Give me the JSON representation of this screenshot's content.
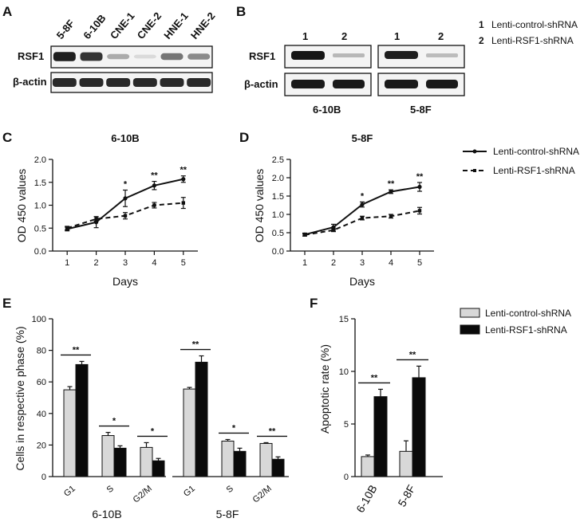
{
  "panels": {
    "A": {
      "label": "A",
      "lanes": [
        "5-8F",
        "6-10B",
        "CNE-1",
        "CNE-2",
        "HNE-1",
        "HNE-2"
      ],
      "rows": [
        "RSF1",
        "β-actin"
      ],
      "rsf1_intensity": [
        0.95,
        0.85,
        0.3,
        0.08,
        0.55,
        0.45
      ],
      "actin_intensity": [
        0.9,
        0.9,
        0.9,
        0.9,
        0.9,
        0.9
      ]
    },
    "B": {
      "label": "B",
      "lanes": [
        "1",
        "2"
      ],
      "rows": [
        "RSF1",
        "β-actin"
      ],
      "groups": [
        "6-10B",
        "5-8F"
      ],
      "legend": [
        {
          "num": "1",
          "text": "Lenti-control-shRNA"
        },
        {
          "num": "2",
          "text": "Lenti-RSF1-shRNA"
        }
      ]
    },
    "C": {
      "label": "C"
    },
    "D": {
      "label": "D"
    },
    "E": {
      "label": "E"
    },
    "F": {
      "label": "F"
    },
    "legend_cd": {
      "control": "Lenti-control-shRNA",
      "rsf1": "Lenti-RSF1-shRNA"
    },
    "legend_ef": {
      "control": "Lenti-control-shRNA",
      "rsf1": "Lenti-RSF1-shRNA"
    }
  },
  "chart_data": [
    {
      "id": "C",
      "type": "line",
      "title": "6-10B",
      "xlabel": "Days",
      "ylabel": "OD 450 values",
      "x": [
        1,
        2,
        3,
        4,
        5
      ],
      "xlim": [
        0.5,
        5.5
      ],
      "ylim": [
        0,
        2.0
      ],
      "yticks": [
        "0.0",
        "0.5",
        "1.0",
        "1.5",
        "2.0"
      ],
      "series": [
        {
          "name": "Lenti-control-shRNA",
          "values": [
            0.48,
            0.63,
            1.15,
            1.43,
            1.57
          ],
          "err": [
            0.04,
            0.12,
            0.18,
            0.09,
            0.07
          ],
          "style": "solid"
        },
        {
          "name": "Lenti-RSF1-shRNA",
          "values": [
            0.5,
            0.7,
            0.77,
            1.0,
            1.05
          ],
          "err": [
            0.04,
            0.05,
            0.07,
            0.06,
            0.12
          ],
          "style": "dashed"
        }
      ],
      "annotations": [
        {
          "x": 3,
          "text": "*"
        },
        {
          "x": 4,
          "text": "**"
        },
        {
          "x": 5,
          "text": "**"
        }
      ]
    },
    {
      "id": "D",
      "type": "line",
      "title": "5-8F",
      "xlabel": "Days",
      "ylabel": "OD 450 values",
      "x": [
        1,
        2,
        3,
        4,
        5
      ],
      "xlim": [
        0.5,
        5.5
      ],
      "ylim": [
        0,
        2.5
      ],
      "yticks": [
        "0.0",
        "0.5",
        "1.0",
        "1.5",
        "2.0",
        "2.5"
      ],
      "series": [
        {
          "name": "Lenti-control-shRNA",
          "values": [
            0.45,
            0.65,
            1.27,
            1.62,
            1.75
          ],
          "err": [
            0.04,
            0.08,
            0.07,
            0.05,
            0.12
          ],
          "style": "solid"
        },
        {
          "name": "Lenti-RSF1-shRNA",
          "values": [
            0.44,
            0.57,
            0.9,
            0.95,
            1.1
          ],
          "err": [
            0.03,
            0.04,
            0.05,
            0.05,
            0.09
          ],
          "style": "dashed"
        }
      ],
      "annotations": [
        {
          "x": 3,
          "text": "*"
        },
        {
          "x": 4,
          "text": "**"
        },
        {
          "x": 5,
          "text": "**"
        }
      ]
    },
    {
      "id": "E",
      "type": "bar",
      "ylabel": "Cells in respective phase (%)",
      "ylim": [
        0,
        100
      ],
      "yticks": [
        "0",
        "20",
        "40",
        "60",
        "80",
        "100"
      ],
      "groups": [
        {
          "name": "6-10B",
          "categories": [
            "G1",
            "S",
            "G2/M"
          ],
          "control": [
            55,
            26,
            18.5
          ],
          "rsf1": [
            71,
            18,
            10
          ],
          "control_err": [
            2,
            2,
            3
          ],
          "rsf1_err": [
            2,
            1.5,
            1.5
          ],
          "sig": [
            "**",
            "*",
            "*"
          ]
        },
        {
          "name": "5-8F",
          "categories": [
            "G1",
            "S",
            "G2/M"
          ],
          "control": [
            55.5,
            22.5,
            21
          ],
          "rsf1": [
            72.5,
            16,
            11
          ],
          "control_err": [
            1,
            1,
            0.5
          ],
          "rsf1_err": [
            4,
            2,
            1.5
          ],
          "sig": [
            "**",
            "*",
            "**"
          ]
        }
      ]
    },
    {
      "id": "F",
      "type": "bar",
      "ylabel": "Apoptotic rate (%)",
      "ylim": [
        0,
        15
      ],
      "yticks": [
        "0",
        "5",
        "10",
        "15"
      ],
      "categories": [
        "6-10B",
        "5-8F"
      ],
      "series": [
        {
          "name": "Lenti-control-shRNA",
          "values": [
            1.9,
            2.4
          ],
          "err": [
            0.15,
            1.0
          ]
        },
        {
          "name": "Lenti-RSF1-shRNA",
          "values": [
            7.6,
            9.4
          ],
          "err": [
            0.7,
            1.1
          ]
        }
      ],
      "sig": [
        "**",
        "**"
      ]
    }
  ]
}
